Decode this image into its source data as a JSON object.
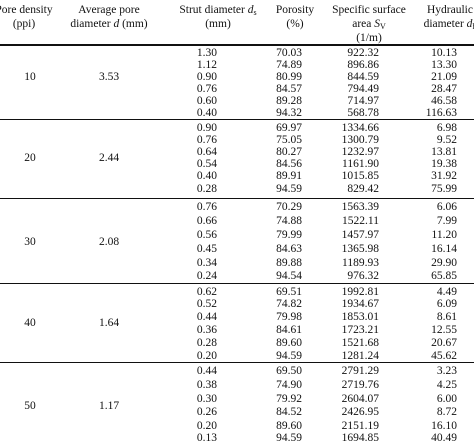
{
  "headers": {
    "pore_density": [
      "Pore density",
      "(ppi)"
    ],
    "avg_pore": [
      "Average pore",
      "diameter ",
      "d",
      " (mm)"
    ],
    "strut": [
      "Strut diameter ",
      "d",
      "s",
      "(mm)"
    ],
    "porosity": [
      "Porosity",
      "(%)"
    ],
    "specific_area": [
      "Specific surface",
      "area ",
      "S",
      "V",
      "(1/m)"
    ],
    "hydraulic": [
      "Hydraulic",
      "diameter ",
      "d",
      "h"
    ]
  },
  "groups": [
    {
      "ppi": "10",
      "avg": "3.53",
      "rows": [
        {
          "strut": "1.30",
          "porosity": "70.03",
          "sv": "922.32",
          "dh": "10.13"
        },
        {
          "strut": "1.12",
          "porosity": "74.89",
          "sv": "896.86",
          "dh": "13.30"
        },
        {
          "strut": "0.90",
          "porosity": "80.99",
          "sv": "844.59",
          "dh": "21.09"
        },
        {
          "strut": "0.76",
          "porosity": "84.57",
          "sv": "794.49",
          "dh": "28.47"
        },
        {
          "strut": "0.60",
          "porosity": "89.28",
          "sv": "714.97",
          "dh": "46.58"
        },
        {
          "strut": "0.40",
          "porosity": "94.32",
          "sv": "568.78",
          "dh": "116.63"
        }
      ]
    },
    {
      "ppi": "20",
      "avg": "2.44",
      "rows": [
        {
          "strut": "0.90",
          "porosity": "69.97",
          "sv": "1334.66",
          "dh": "6.98"
        },
        {
          "strut": "0.76",
          "porosity": "75.05",
          "sv": "1300.79",
          "dh": "9.52"
        },
        {
          "strut": "0.64",
          "porosity": "80.27",
          "sv": "1232.97",
          "dh": "13.81"
        },
        {
          "strut": "0.54",
          "porosity": "84.56",
          "sv": "1161.90",
          "dh": "19.38"
        },
        {
          "strut": "0.40",
          "porosity": "89.91",
          "sv": "1015.85",
          "dh": "31.92"
        },
        {
          "strut": "0.28",
          "porosity": "94.59",
          "sv": "829.42",
          "dh": "75.99"
        }
      ]
    },
    {
      "ppi": "30",
      "avg": "2.08",
      "rows": [
        {
          "strut": "0.76",
          "porosity": "70.29",
          "sv": "1563.39",
          "dh": "6.06"
        },
        {
          "strut": "0.66",
          "porosity": "74.88",
          "sv": "1522.11",
          "dh": "7.99"
        },
        {
          "strut": "0.56",
          "porosity": "79.99",
          "sv": "1457.97",
          "dh": "11.20"
        },
        {
          "strut": "0.45",
          "porosity": "84.63",
          "sv": "1365.98",
          "dh": "16.14"
        },
        {
          "strut": "0.34",
          "porosity": "89.88",
          "sv": "1189.93",
          "dh": "29.90"
        },
        {
          "strut": "0.24",
          "porosity": "94.54",
          "sv": "976.32",
          "dh": "65.85"
        }
      ]
    },
    {
      "ppi": "40",
      "avg": "1.64",
      "rows": [
        {
          "strut": "0.62",
          "porosity": "69.51",
          "sv": "1992.81",
          "dh": "4.49"
        },
        {
          "strut": "0.52",
          "porosity": "74.82",
          "sv": "1934.67",
          "dh": "6.09"
        },
        {
          "strut": "0.44",
          "porosity": "79.98",
          "sv": "1853.01",
          "dh": "8.61"
        },
        {
          "strut": "0.36",
          "porosity": "84.61",
          "sv": "1723.21",
          "dh": "12.55"
        },
        {
          "strut": "0.28",
          "porosity": "89.60",
          "sv": "1521.68",
          "dh": "20.67"
        },
        {
          "strut": "0.20",
          "porosity": "94.59",
          "sv": "1281.24",
          "dh": "45.62"
        }
      ]
    },
    {
      "ppi": "50",
      "avg": "1.17",
      "rows": [
        {
          "strut": "0.44",
          "porosity": "69.50",
          "sv": "2791.29",
          "dh": "3.23"
        },
        {
          "strut": "0.38",
          "porosity": "74.90",
          "sv": "2719.76",
          "dh": "4.25"
        },
        {
          "strut": "0.30",
          "porosity": "79.92",
          "sv": "2604.07",
          "dh": "6.00"
        },
        {
          "strut": "0.26",
          "porosity": "84.52",
          "sv": "2426.95",
          "dh": "8.72"
        },
        {
          "strut": "0.20",
          "porosity": "89.60",
          "sv": "2151.19",
          "dh": "16.10"
        },
        {
          "strut": "0.13",
          "porosity": "94.59",
          "sv": "1694.85",
          "dh": "40.49"
        }
      ]
    }
  ]
}
